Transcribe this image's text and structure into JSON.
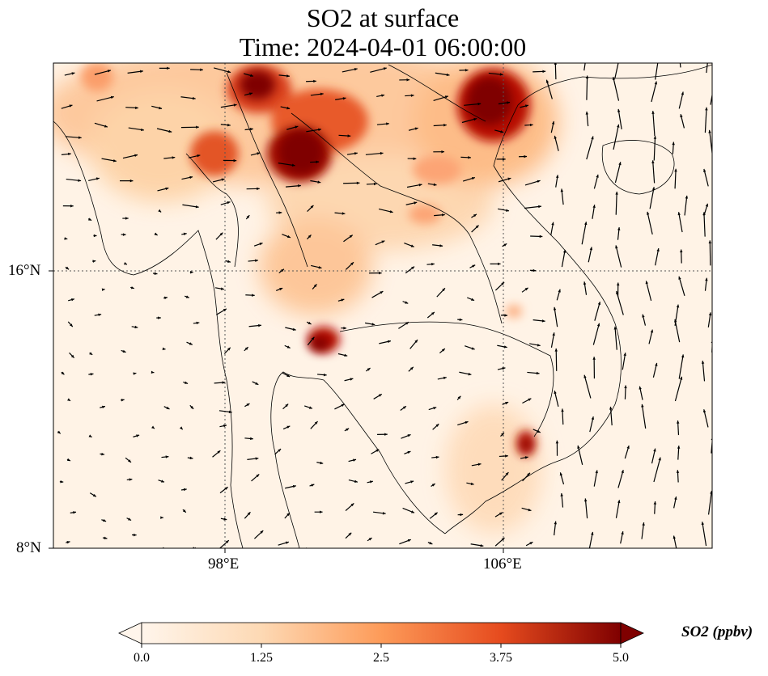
{
  "title": {
    "line1": "SO2 at surface",
    "line2": "Time: 2024-04-01 06:00:00"
  },
  "axes": {
    "lat_labels": [
      "16°N",
      "8°N"
    ],
    "lon_labels": [
      "98°E",
      "106°E"
    ]
  },
  "colorbar": {
    "label": "SO2 (ppbv)",
    "ticks": [
      "0.0",
      "1.25",
      "2.5",
      "3.75",
      "5.0"
    ],
    "min": 0.0,
    "max": 5.0,
    "extend": "both",
    "colormap": [
      "#fff5eb",
      "#fdd0a2",
      "#fd8d3c",
      "#d94801",
      "#7f0000"
    ]
  }
}
